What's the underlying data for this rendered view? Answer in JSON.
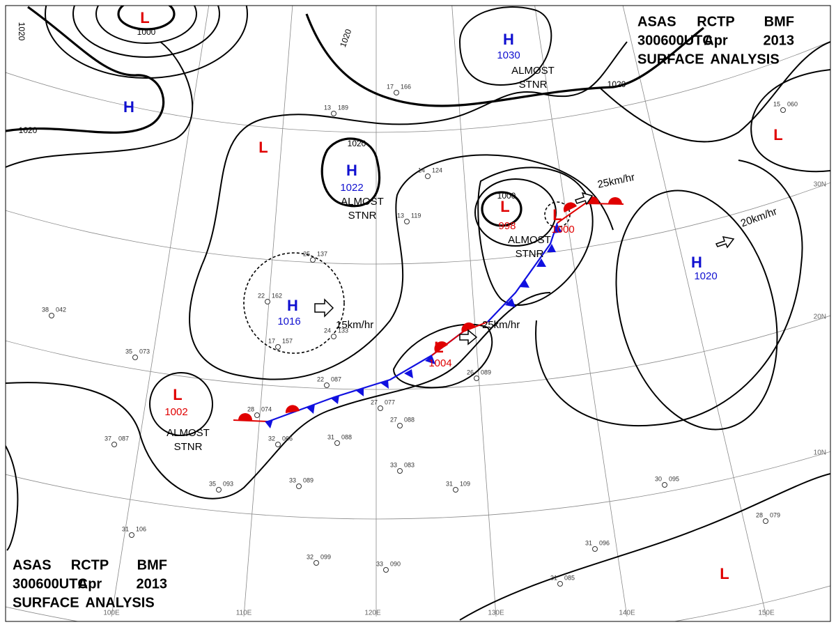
{
  "header_top": {
    "line1": [
      "ASAS",
      "RCTP",
      "BMF"
    ],
    "line2": [
      "300600UTC",
      "Apr",
      "2013"
    ],
    "line3": "SURFACE ANALYSIS"
  },
  "header_bottom": {
    "line1": [
      "ASAS",
      "RCTP",
      "BMF"
    ],
    "line2": [
      "300600UTC",
      "Apr",
      "2013"
    ],
    "line3": "SURFACE ANALYSIS"
  },
  "pressure_centers": [
    {
      "symbol": "H",
      "value": 1030
    },
    {
      "symbol": "H"
    },
    {
      "symbol": "L"
    },
    {
      "symbol": "H",
      "value": 1022
    },
    {
      "symbol": "L"
    },
    {
      "symbol": "L",
      "value": 998
    },
    {
      "symbol": "L",
      "value": 1000
    },
    {
      "symbol": "H",
      "value": 1016
    },
    {
      "symbol": "L",
      "value": 1004
    },
    {
      "symbol": "L",
      "value": 1002
    },
    {
      "symbol": "H",
      "value": 1020
    },
    {
      "symbol": "L"
    },
    {
      "symbol": "L"
    }
  ],
  "isobar_labels": [
    1020,
    1000,
    1020,
    1020,
    1020,
    1020,
    1000
  ],
  "motion_labels": [
    "15km/hr",
    "25km/hr",
    "25km/hr",
    "20km/hr"
  ],
  "notes": [
    [
      "ALMOST",
      "STNR"
    ],
    [
      "ALMOST",
      "STNR"
    ],
    [
      "ALMOST",
      "STNR"
    ],
    [
      "ALMOST",
      "STNR"
    ]
  ],
  "latitude_labels": [
    "30N",
    "20N",
    "10N"
  ],
  "longitude_labels": [
    "100E",
    "110E",
    "120E",
    "130E",
    "140E",
    "150E"
  ],
  "stations": [
    {
      "temp": "25",
      "pressure": "137"
    },
    {
      "temp": "22",
      "pressure": "162"
    },
    {
      "temp": "17",
      "pressure": "157"
    },
    {
      "temp": "24",
      "pressure": "133"
    },
    {
      "temp": "22",
      "pressure": "087"
    },
    {
      "temp": "27",
      "pressure": "077"
    },
    {
      "temp": "27",
      "pressure": "088"
    },
    {
      "temp": "32",
      "pressure": "066"
    },
    {
      "temp": "31",
      "pressure": "088"
    },
    {
      "temp": "28",
      "pressure": "074"
    },
    {
      "temp": "35",
      "pressure": "073"
    },
    {
      "temp": "38",
      "pressure": "042"
    },
    {
      "temp": "13",
      "pressure": "119"
    },
    {
      "temp": "14",
      "pressure": "124"
    },
    {
      "temp": "13",
      "pressure": "189"
    },
    {
      "temp": "17",
      "pressure": "166"
    },
    {
      "temp": "15",
      "pressure": "060"
    },
    {
      "temp": "30",
      "pressure": "095"
    },
    {
      "temp": "28",
      "pressure": "079"
    },
    {
      "temp": "31",
      "pressure": "109"
    },
    {
      "temp": "31",
      "pressure": "096"
    },
    {
      "temp": "31",
      "pressure": "085"
    },
    {
      "temp": "32",
      "pressure": "099"
    },
    {
      "temp": "33",
      "pressure": "090"
    },
    {
      "temp": "35",
      "pressure": "093"
    },
    {
      "temp": "31",
      "pressure": "106"
    },
    {
      "temp": "37",
      "pressure": "087"
    },
    {
      "temp": "33",
      "pressure": "083"
    },
    {
      "temp": "26",
      "pressure": "089"
    },
    {
      "temp": "33",
      "pressure": "089"
    }
  ]
}
